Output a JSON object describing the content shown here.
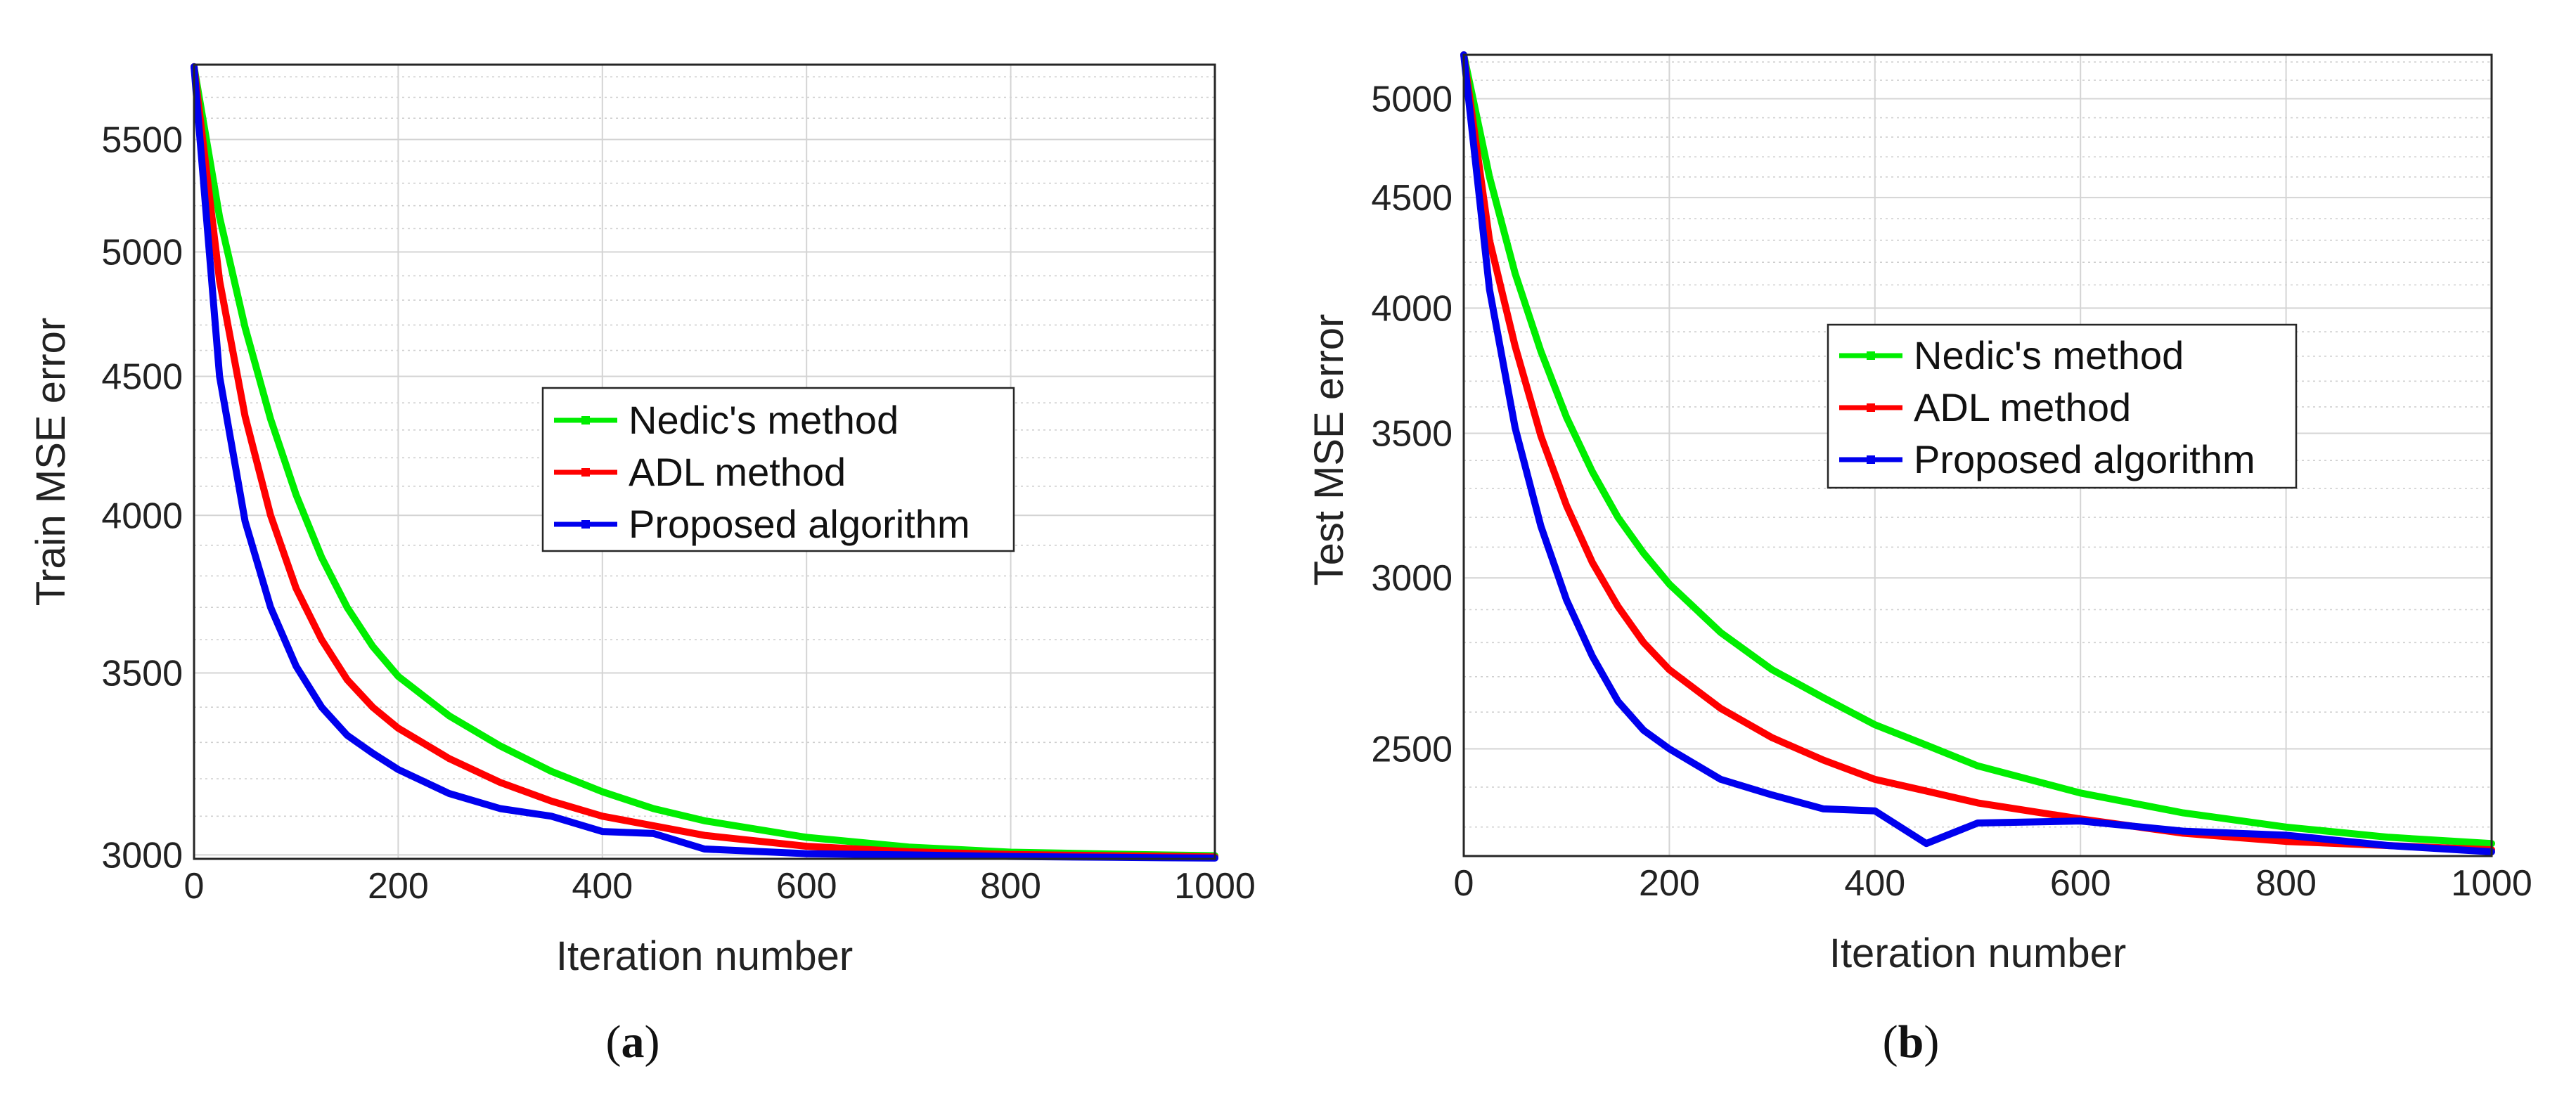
{
  "chart_data": [
    {
      "type": "line",
      "caption_letter": "a",
      "xlabel": "Iteration number",
      "ylabel": "Train MSE error",
      "xlim": [
        0,
        1000
      ],
      "ylim": [
        2990,
        5860
      ],
      "yscale": "log",
      "grid": true,
      "minor_grid": true,
      "legend_position": "center-right",
      "x_ticks": [
        "0",
        "200",
        "400",
        "600",
        "800",
        "1000"
      ],
      "y_ticks": [
        "3000",
        "3500",
        "4000",
        "4500",
        "5000",
        "5500"
      ],
      "x": [
        0,
        25,
        50,
        75,
        100,
        125,
        150,
        175,
        200,
        250,
        300,
        350,
        400,
        450,
        500,
        600,
        700,
        800,
        900,
        1000
      ],
      "series": [
        {
          "name": "Nedic's method",
          "color": "#00ee00",
          "values": [
            5850,
            5150,
            4690,
            4340,
            4070,
            3860,
            3700,
            3580,
            3490,
            3375,
            3290,
            3220,
            3165,
            3120,
            3088,
            3045,
            3020,
            3007,
            3002,
            2998
          ]
        },
        {
          "name": "ADL method",
          "color": "#ff0000",
          "values": [
            5850,
            4880,
            4350,
            4000,
            3760,
            3600,
            3480,
            3400,
            3340,
            3255,
            3190,
            3140,
            3100,
            3075,
            3050,
            3022,
            3008,
            3001,
            2998,
            2995
          ]
        },
        {
          "name": "Proposed algorithm",
          "color": "#0000ee",
          "values": [
            5850,
            4500,
            3980,
            3700,
            3520,
            3400,
            3320,
            3270,
            3225,
            3160,
            3120,
            3100,
            3060,
            3055,
            3015,
            3003,
            3000,
            2996,
            2994,
            2992
          ]
        }
      ]
    },
    {
      "type": "line",
      "caption_letter": "b",
      "xlabel": "Iteration number",
      "ylabel": "Test MSE error",
      "xlim": [
        0,
        1000
      ],
      "ylim": [
        2230,
        5240
      ],
      "yscale": "log",
      "grid": true,
      "minor_grid": true,
      "legend_position": "center-right",
      "x_ticks": [
        "0",
        "200",
        "400",
        "600",
        "800",
        "1000"
      ],
      "y_ticks": [
        "2500",
        "3000",
        "3500",
        "4000",
        "4500",
        "5000"
      ],
      "x": [
        0,
        25,
        50,
        75,
        100,
        125,
        150,
        175,
        200,
        250,
        300,
        350,
        400,
        450,
        500,
        600,
        700,
        800,
        900,
        1000
      ],
      "series": [
        {
          "name": "Nedic's method",
          "color": "#00ee00",
          "values": [
            5240,
            4600,
            4150,
            3820,
            3560,
            3360,
            3200,
            3080,
            2980,
            2830,
            2720,
            2640,
            2565,
            2510,
            2455,
            2385,
            2335,
            2300,
            2275,
            2260
          ]
        },
        {
          "name": "ADL method",
          "color": "#ff0000",
          "values": [
            5240,
            4300,
            3840,
            3490,
            3240,
            3050,
            2910,
            2800,
            2720,
            2610,
            2530,
            2470,
            2420,
            2390,
            2360,
            2320,
            2285,
            2265,
            2255,
            2245
          ]
        },
        {
          "name": "Proposed algorithm",
          "color": "#0000ee",
          "values": [
            5240,
            4080,
            3520,
            3170,
            2930,
            2760,
            2630,
            2550,
            2500,
            2420,
            2380,
            2345,
            2340,
            2260,
            2310,
            2315,
            2290,
            2280,
            2255,
            2240
          ]
        }
      ]
    }
  ]
}
